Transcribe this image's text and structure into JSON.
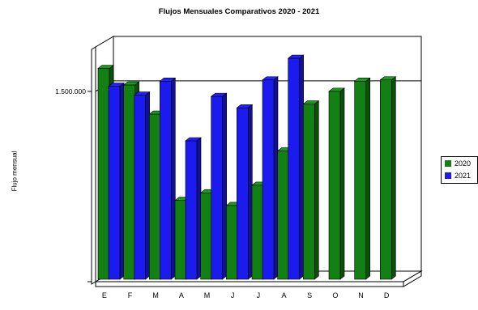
{
  "chart_data": {
    "type": "bar",
    "title": "Flujos Mensuales Comparativos 2020 - 2021",
    "ylabel": "Flujo mensual",
    "xlabel": "",
    "categories": [
      "E",
      "F",
      "M",
      "A",
      "M",
      "J",
      "J",
      "A",
      "S",
      "O",
      "N",
      "D"
    ],
    "y_ticks": [
      {
        "value": 1500000,
        "label": "1.500.000"
      }
    ],
    "ylim": [
      0,
      1850000
    ],
    "grid": true,
    "legend_position": "right",
    "series": [
      {
        "name": "2020",
        "color": "#128012",
        "values": [
          1680000,
          1550000,
          1320000,
          640000,
          700000,
          600000,
          760000,
          1030000,
          1400000,
          1500000,
          1580000,
          1590000
        ]
      },
      {
        "name": "2021",
        "color": "#1b1bf0",
        "values": [
          1540000,
          1470000,
          1580000,
          1110000,
          1460000,
          1370000,
          1590000,
          1760000,
          null,
          null,
          null,
          null
        ]
      }
    ]
  }
}
